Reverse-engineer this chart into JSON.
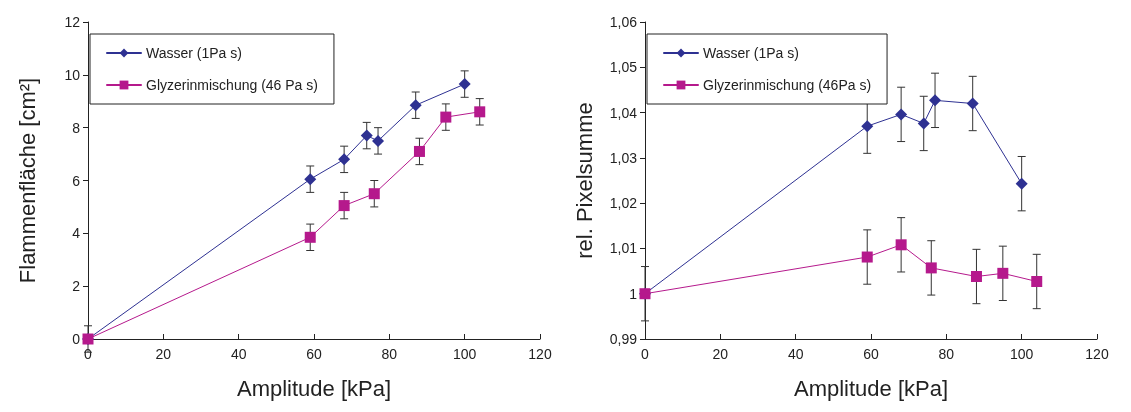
{
  "chart_data": [
    {
      "type": "line",
      "xlabel": "Amplitude [kPa]",
      "ylabel": "Flammenfläche [cm²]",
      "xlim": [
        0,
        120
      ],
      "xticks": [
        0,
        20,
        40,
        60,
        80,
        100,
        120
      ],
      "ylim": [
        0,
        12
      ],
      "yticks": [
        0,
        2,
        4,
        6,
        8,
        10,
        12
      ],
      "grid": false,
      "legend": "top left",
      "line_style": "solid",
      "series": [
        {
          "name": "Wasser (1Pa s)",
          "color": "#2e3192",
          "marker": "diamond",
          "x": [
            0,
            59,
            68,
            74,
            77,
            87,
            100
          ],
          "values": [
            0,
            6.05,
            6.8,
            7.7,
            7.5,
            8.85,
            9.65
          ],
          "errors": [
            0.5,
            0.5,
            0.5,
            0.5,
            0.5,
            0.5,
            0.5
          ]
        },
        {
          "name": "Glyzerinmischung (46 Pa s)",
          "color": "#b5198c",
          "marker": "square",
          "x": [
            0,
            59,
            68,
            76,
            88,
            95,
            104
          ],
          "values": [
            0,
            3.85,
            5.05,
            5.5,
            7.1,
            8.4,
            8.6
          ],
          "errors": [
            null,
            0.5,
            0.5,
            0.5,
            0.5,
            0.5,
            0.5
          ]
        }
      ]
    },
    {
      "type": "line",
      "xlabel": "Amplitude [kPa]",
      "ylabel": "rel. Pixelsumme",
      "xlim": [
        0,
        120
      ],
      "xticks": [
        0,
        20,
        40,
        60,
        80,
        100,
        120
      ],
      "ylim": [
        0.99,
        1.06
      ],
      "yticks": [
        {
          "value": 0.99,
          "label": "0,99"
        },
        1,
        {
          "value": 1.01,
          "label": "1,01"
        },
        {
          "value": 1.02,
          "label": "1,02"
        },
        {
          "value": 1.03,
          "label": "1,03"
        },
        {
          "value": 1.04,
          "label": "1,04"
        },
        {
          "value": 1.05,
          "label": "1,05"
        },
        {
          "value": 1.06,
          "label": "1,06"
        }
      ],
      "grid": false,
      "legend": "top left",
      "line_style": "solid",
      "series": [
        {
          "name": "Wasser (1Pa s)",
          "color": "#2e3192",
          "marker": "diamond",
          "x": [
            0,
            59,
            68,
            74,
            77,
            87,
            100
          ],
          "values": [
            1,
            1.037,
            1.0396,
            1.0376,
            1.0427,
            1.042,
            1.0243
          ],
          "errors": [
            0.006,
            0.006,
            0.006,
            0.006,
            0.006,
            0.006,
            0.006
          ]
        },
        {
          "name": "Glyzerinmischung (46Pa s)",
          "color": "#b5198c",
          "marker": "square",
          "x": [
            0,
            59,
            68,
            76,
            88,
            95,
            104
          ],
          "values": [
            1,
            1.0081,
            1.0108,
            1.0057,
            1.0038,
            1.0045,
            1.0027
          ],
          "errors": [
            null,
            0.006,
            0.006,
            0.006,
            0.006,
            0.006,
            0.006
          ]
        }
      ]
    }
  ]
}
